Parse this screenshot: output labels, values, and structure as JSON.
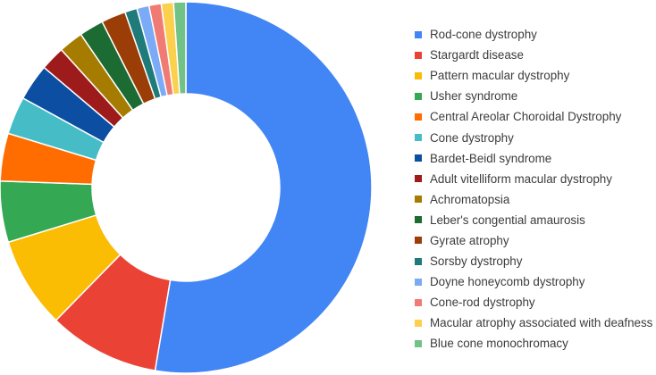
{
  "chart_data": {
    "type": "pie",
    "donut": true,
    "title": "",
    "legend_position": "right",
    "categories": [
      "Rod-cone dystrophy",
      "Stargardt disease",
      "Pattern macular dystrophy",
      "Usher syndrome",
      "Central Areolar Choroidal Dystrophy",
      "Cone dystrophy",
      "Bardet-Beidl syndrome",
      "Adult vitelliform macular dystrophy",
      "Achromatopsia",
      "Leber's congential amaurosis",
      "Gyrate atrophy",
      "Sorsby dystrophy",
      "Doyne honeycomb dystrophy",
      "Cone-rod dystrophy",
      "Macular atrophy associated with deafness",
      "Blue cone monochromacy"
    ],
    "values": [
      54.5,
      10,
      8.2,
      5.5,
      4.3,
      3.4,
      3.3,
      2.2,
      2.2,
      2.2,
      2.2,
      1.1,
      1.1,
      1.1,
      1.1,
      1.1
    ],
    "colors": [
      "#4285f4",
      "#ea4335",
      "#fbbc04",
      "#34a853",
      "#ff6d01",
      "#46bdc6",
      "#0b4ea2",
      "#9e1b1b",
      "#a67c00",
      "#1b6b33",
      "#9a3d06",
      "#1f7a7a",
      "#7baaf7",
      "#f07b72",
      "#fcd04f",
      "#71c287"
    ]
  }
}
